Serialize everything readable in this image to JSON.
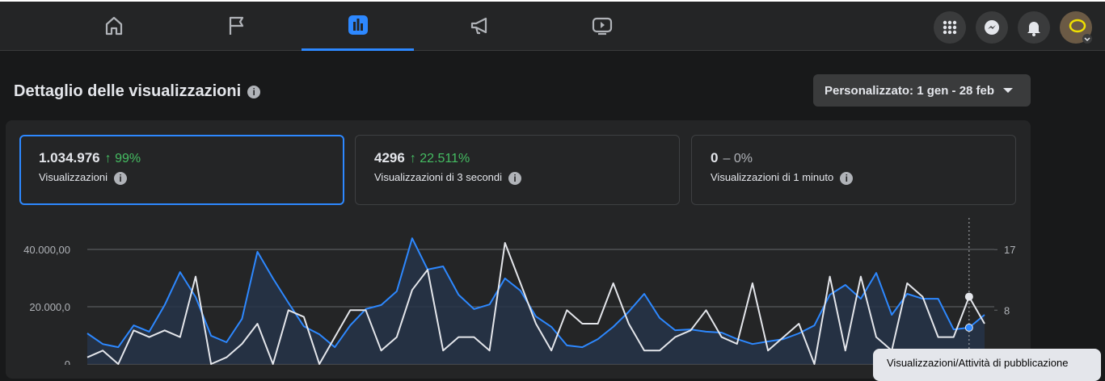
{
  "page": {
    "title": "Dettaglio delle visualizzazioni",
    "date_button": "Personalizzato: 1 gen - 28 feb"
  },
  "metrics": [
    {
      "value": "1.034.976",
      "change": "↑ 99%",
      "label": "Visualizzazioni"
    },
    {
      "value": "4296",
      "change": "↑ 22.511%",
      "label": "Visualizzazioni di 3 secondi"
    },
    {
      "value": "0",
      "change": "– 0%",
      "label": "Visualizzazioni di 1 minuto"
    }
  ],
  "tooltip": "Visualizzazioni/Attività di pubblicazione",
  "chart_data": {
    "type": "line",
    "series": [
      {
        "color": "#2d88ff",
        "axis": "y",
        "values": [
          10700,
          7000,
          5900,
          13500,
          11300,
          20600,
          32100,
          23400,
          9900,
          7600,
          15800,
          39200,
          29900,
          21400,
          13200,
          10400,
          5900,
          13500,
          19200,
          20600,
          25400,
          43900,
          33000,
          34100,
          24200,
          19200,
          20800,
          29900,
          25600,
          16600,
          13000,
          6500,
          5900,
          8700,
          13000,
          18300,
          24500,
          16100,
          11800,
          12100,
          11300,
          11000,
          8700,
          7000,
          7900,
          8700,
          10700,
          13500,
          24200,
          27600,
          22800,
          31800,
          17200,
          24500,
          22800,
          22800,
          12100,
          12700,
          17200
        ]
      },
      {
        "color": "#e4e6eb",
        "axis": "y2",
        "values": [
          1,
          2,
          0,
          5,
          4,
          5,
          4,
          13,
          0,
          1,
          3,
          6,
          0,
          8,
          7,
          0,
          4,
          8,
          8,
          2,
          4,
          11,
          14,
          2,
          4,
          4,
          2,
          18,
          12,
          6,
          2,
          8,
          6,
          6,
          12,
          6,
          2,
          2,
          4,
          5,
          8,
          4,
          3,
          12,
          2,
          4,
          6,
          0,
          13,
          2,
          13,
          4,
          2,
          12,
          10,
          4,
          4,
          10,
          6
        ]
      }
    ],
    "ylim": [
      0,
      51000
    ],
    "yticks": [
      0,
      {
        "value": 20000,
        "label": "20.000,0"
      },
      {
        "value": 40000,
        "label": "40.000,00"
      }
    ],
    "y2lim": [
      0,
      21.7
    ],
    "y2ticks": [
      8,
      17
    ],
    "grid": true
  }
}
